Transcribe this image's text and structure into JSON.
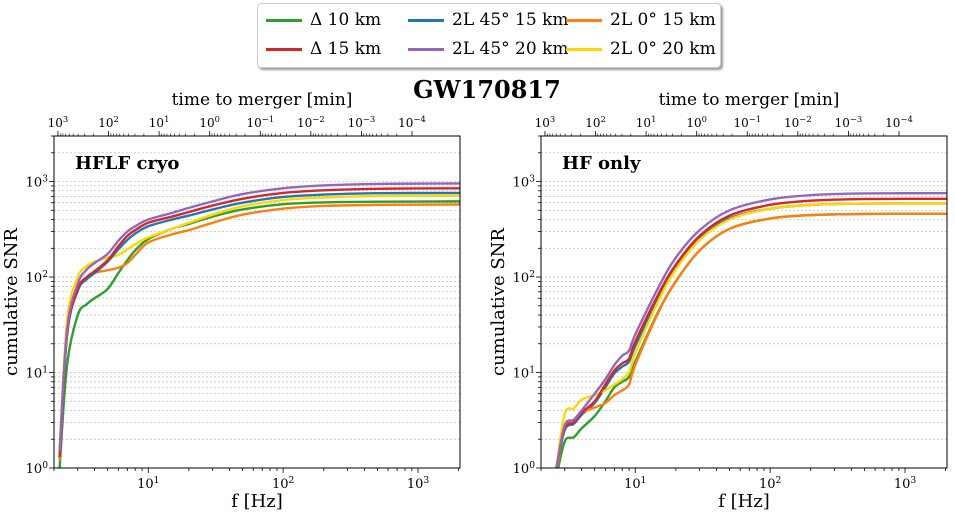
{
  "title": "GW170817",
  "legend": [
    {
      "label": "Δ 10 km",
      "color": "#2ca02c"
    },
    {
      "label": "Δ 15 km",
      "color": "#d62728"
    },
    {
      "label": "2L 45° 15 km",
      "color": "#1f77b4"
    },
    {
      "label": "2L 45° 20 km",
      "color": "#9467bd"
    },
    {
      "label": "2L 0° 15 km",
      "color": "#ff7f0e"
    },
    {
      "label": "2L 0° 20 km",
      "color": "#ffd700"
    }
  ],
  "chart_data": [
    {
      "type": "line",
      "panel_label": "HFLF cryo",
      "xlabel": "f [Hz]",
      "ylabel": "cumulative SNR",
      "top_xlabel": "time to merger [min]",
      "xscale": "log",
      "yscale": "log",
      "xlim": [
        2,
        2048
      ],
      "ylim": [
        1,
        3000
      ],
      "grid": "horizontal dotted",
      "xticks": [
        {
          "base": "10",
          "exp": "1",
          "value": 10
        },
        {
          "base": "10",
          "exp": "2",
          "value": 100
        },
        {
          "base": "10",
          "exp": "3",
          "value": 1000
        }
      ],
      "yticks": [
        {
          "base": "10",
          "exp": "0",
          "value": 1
        },
        {
          "base": "10",
          "exp": "1",
          "value": 10
        },
        {
          "base": "10",
          "exp": "2",
          "value": 100
        },
        {
          "base": "10",
          "exp": "3",
          "value": 1000
        }
      ],
      "top_xticks": [
        {
          "base": "10",
          "exp": "3",
          "value": 1000
        },
        {
          "base": "10",
          "exp": "2",
          "value": 100
        },
        {
          "base": "10",
          "exp": "1",
          "value": 10
        },
        {
          "base": "10",
          "exp": "0",
          "value": 1
        },
        {
          "base": "10",
          "exp": "−1",
          "value": 0.1
        },
        {
          "base": "10",
          "exp": "−2",
          "value": 0.01
        },
        {
          "base": "10",
          "exp": "−3",
          "value": 0.001
        },
        {
          "base": "10",
          "exp": "−4",
          "value": 0.0001
        }
      ],
      "x": [
        2.2,
        2.5,
        3,
        3.5,
        4,
        5,
        6,
        7,
        8,
        10,
        15,
        20,
        30,
        50,
        100,
        200,
        500,
        2048
      ],
      "series": [
        {
          "name": "Δ 10 km",
          "values": [
            1.0,
            12,
            40,
            52,
            60,
            75,
            110,
            150,
            190,
            250,
            320,
            360,
            430,
            510,
            580,
            605,
            615,
            620
          ]
        },
        {
          "name": "2L 0° 15 km",
          "values": [
            1.2,
            28,
            75,
            95,
            110,
            118,
            125,
            140,
            170,
            230,
            280,
            310,
            370,
            450,
            520,
            555,
            570,
            575
          ]
        },
        {
          "name": "2L 0° 20 km",
          "values": [
            1.5,
            35,
            100,
            130,
            145,
            160,
            170,
            195,
            220,
            260,
            320,
            370,
            450,
            550,
            640,
            680,
            705,
            710
          ]
        },
        {
          "name": "2L 45° 15 km",
          "values": [
            1.3,
            25,
            72,
            95,
            110,
            145,
            195,
            245,
            285,
            340,
            400,
            440,
            510,
            600,
            690,
            730,
            755,
            760
          ]
        },
        {
          "name": "Δ 15 km",
          "values": [
            1.3,
            25,
            75,
            100,
            115,
            150,
            210,
            270,
            310,
            370,
            430,
            480,
            560,
            660,
            760,
            810,
            840,
            850
          ]
        },
        {
          "name": "2L 45° 20 km",
          "values": [
            1.5,
            28,
            85,
            120,
            140,
            175,
            240,
            300,
            340,
            400,
            470,
            530,
            620,
            740,
            850,
            910,
            945,
            955
          ]
        }
      ]
    },
    {
      "type": "line",
      "panel_label": "HF only",
      "xlabel": "f [Hz]",
      "ylabel": "cumulative SNR",
      "top_xlabel": "time to merger [min]",
      "xscale": "log",
      "yscale": "log",
      "xlim": [
        2,
        2048
      ],
      "ylim": [
        1,
        3000
      ],
      "grid": "horizontal dotted",
      "xticks": [
        {
          "base": "10",
          "exp": "1",
          "value": 10
        },
        {
          "base": "10",
          "exp": "2",
          "value": 100
        },
        {
          "base": "10",
          "exp": "3",
          "value": 1000
        }
      ],
      "yticks": [
        {
          "base": "10",
          "exp": "0",
          "value": 1
        },
        {
          "base": "10",
          "exp": "1",
          "value": 10
        },
        {
          "base": "10",
          "exp": "2",
          "value": 100
        },
        {
          "base": "10",
          "exp": "3",
          "value": 1000
        }
      ],
      "top_xticks": [
        {
          "base": "10",
          "exp": "3",
          "value": 1000
        },
        {
          "base": "10",
          "exp": "2",
          "value": 100
        },
        {
          "base": "10",
          "exp": "1",
          "value": 10
        },
        {
          "base": "10",
          "exp": "0",
          "value": 1
        },
        {
          "base": "10",
          "exp": "−1",
          "value": 0.1
        },
        {
          "base": "10",
          "exp": "−2",
          "value": 0.01
        },
        {
          "base": "10",
          "exp": "−3",
          "value": 0.001
        },
        {
          "base": "10",
          "exp": "−4",
          "value": 0.0001
        }
      ],
      "x": [
        2.6,
        3,
        3.5,
        4,
        5,
        6,
        7,
        8,
        9,
        10,
        15,
        20,
        30,
        50,
        100,
        200,
        500,
        2048
      ],
      "series": [
        {
          "name": "Δ 10 km",
          "values": [
            0.8,
            1.9,
            2.1,
            2.6,
            3.5,
            5,
            7,
            8,
            9,
            13,
            45,
            90,
            190,
            320,
            410,
            445,
            458,
            460
          ]
        },
        {
          "name": "2L 45° 15 km",
          "values": [
            1,
            2.5,
            2.9,
            3.6,
            4.8,
            7,
            9.8,
            11.5,
            13,
            19,
            62,
            125,
            250,
            410,
            520,
            570,
            588,
            590
          ]
        },
        {
          "name": "2L 0° 20 km",
          "values": [
            1,
            3.7,
            4.2,
            5.2,
            5.8,
            6.5,
            7.5,
            8.5,
            10,
            16,
            58,
            120,
            245,
            400,
            520,
            570,
            588,
            590
          ]
        },
        {
          "name": "2L 0° 15 km",
          "values": [
            0.9,
            2.7,
            3.1,
            3.8,
            4.3,
            4.8,
            5.8,
            6.5,
            7.5,
            12,
            44,
            90,
            190,
            320,
            410,
            445,
            458,
            460
          ]
        },
        {
          "name": "Δ 15 km",
          "values": [
            1,
            2.6,
            3,
            3.8,
            5,
            7.5,
            10.5,
            12.5,
            14,
            21,
            68,
            135,
            270,
            440,
            570,
            630,
            655,
            660
          ]
        },
        {
          "name": "2L 45° 20 km",
          "values": [
            1,
            2.8,
            3.2,
            4,
            6,
            8.5,
            12,
            15,
            17,
            25,
            80,
            160,
            310,
            500,
            650,
            720,
            750,
            755
          ]
        }
      ]
    }
  ]
}
